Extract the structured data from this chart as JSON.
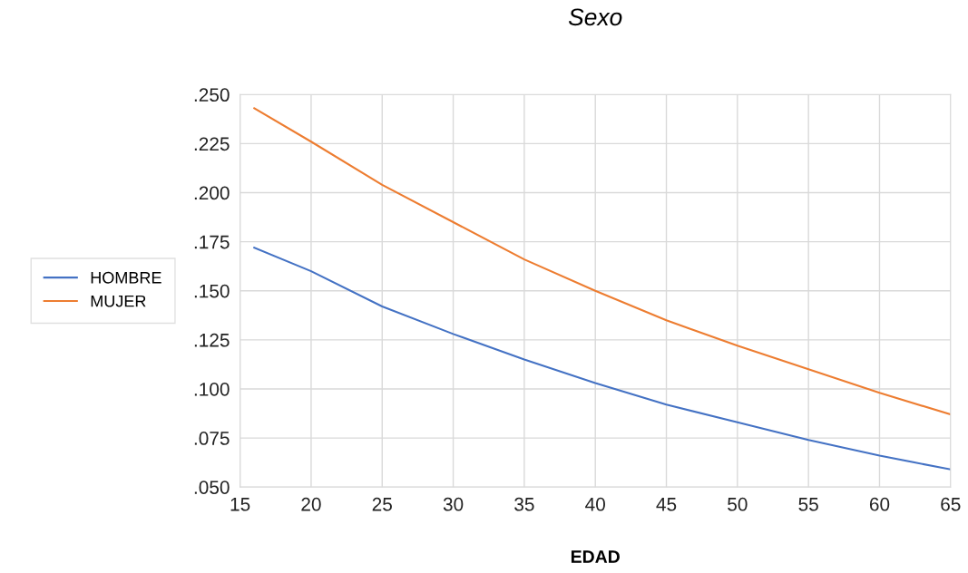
{
  "chart_data": {
    "type": "line",
    "title": "Sexo",
    "xlabel": "EDAD",
    "x": [
      16,
      20,
      25,
      30,
      35,
      40,
      45,
      50,
      55,
      60,
      65
    ],
    "series": [
      {
        "name": "HOMBRE",
        "color": "#4472c4",
        "values": [
          0.172,
          0.16,
          0.142,
          0.128,
          0.115,
          0.103,
          0.092,
          0.083,
          0.074,
          0.066,
          0.059
        ]
      },
      {
        "name": "MUJER",
        "color": "#ed7d31",
        "values": [
          0.243,
          0.226,
          0.204,
          0.185,
          0.166,
          0.15,
          0.135,
          0.122,
          0.11,
          0.098,
          0.087
        ]
      }
    ],
    "xlim": [
      15,
      65
    ],
    "xticks": [
      15,
      20,
      25,
      30,
      35,
      40,
      45,
      50,
      55,
      60,
      65
    ],
    "ylim": [
      0.05,
      0.25
    ],
    "yticks": [
      {
        "value": 0.05,
        "label": ".050"
      },
      {
        "value": 0.075,
        "label": ".075"
      },
      {
        "value": 0.1,
        "label": ".100"
      },
      {
        "value": 0.125,
        "label": ".125"
      },
      {
        "value": 0.15,
        "label": ".150"
      },
      {
        "value": 0.175,
        "label": ".175"
      },
      {
        "value": 0.2,
        "label": ".200"
      },
      {
        "value": 0.225,
        "label": ".225"
      },
      {
        "value": 0.25,
        "label": ".250"
      }
    ],
    "grid": true,
    "legend": "left",
    "marker": "none",
    "line_style": "solid"
  }
}
